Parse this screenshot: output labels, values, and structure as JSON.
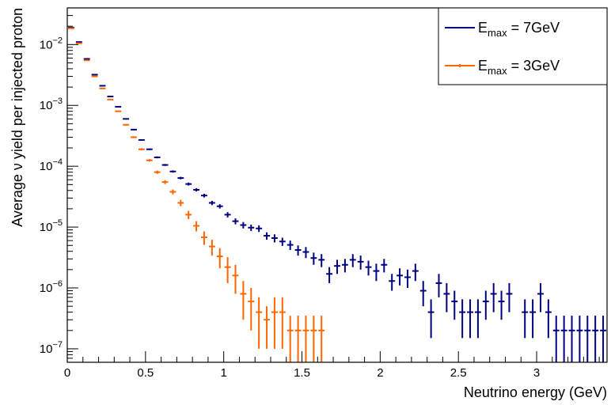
{
  "chart_data": {
    "type": "scatter",
    "title": "",
    "xlabel": "Neutrino energy (GeV)",
    "ylabel": "Average ν yield per injected proton",
    "xlim": [
      0,
      3.45
    ],
    "ylim": [
      6e-08,
      0.04
    ],
    "log_y": true,
    "grid": false,
    "legend_position": "top-right",
    "x_ticks": [
      {
        "value": 0,
        "label": "0"
      },
      {
        "value": 0.5,
        "label": "0.5"
      },
      {
        "value": 1,
        "label": "1"
      },
      {
        "value": 1.5,
        "label": "1.5"
      },
      {
        "value": 2,
        "label": "2"
      },
      {
        "value": 2.5,
        "label": "2.5"
      },
      {
        "value": 3,
        "label": "3"
      }
    ],
    "y_ticks": [
      {
        "exp": -7,
        "base": "10",
        "sup": "−7"
      },
      {
        "exp": -6,
        "base": "10",
        "sup": "−6"
      },
      {
        "exp": -5,
        "base": "10",
        "sup": "−5"
      },
      {
        "exp": -4,
        "base": "10",
        "sup": "−4"
      },
      {
        "exp": -3,
        "base": "10",
        "sup": "−3"
      },
      {
        "exp": -2,
        "base": "10",
        "sup": "−2"
      }
    ],
    "bin_width": 0.05,
    "series": [
      {
        "name": "E_max = 7GeV",
        "legend_main": "E",
        "legend_sub": "max",
        "legend_rest": " = 7GeV",
        "color": "#000080",
        "points": [
          [
            0.025,
            0.019,
            0.0003
          ],
          [
            0.075,
            0.011,
            0.0002
          ],
          [
            0.125,
            0.0058,
            0.0001
          ],
          [
            0.175,
            0.0032,
            6e-05
          ],
          [
            0.225,
            0.0021,
            4e-05
          ],
          [
            0.275,
            0.0014,
            3e-05
          ],
          [
            0.325,
            0.00095,
            2e-05
          ],
          [
            0.375,
            0.0006,
            1.5e-05
          ],
          [
            0.425,
            0.0004,
            1e-05
          ],
          [
            0.475,
            0.00027,
            8e-06
          ],
          [
            0.525,
            0.00019,
            6e-06
          ],
          [
            0.575,
            0.00014,
            5e-06
          ],
          [
            0.625,
            0.000105,
            4e-06
          ],
          [
            0.675,
            8.2e-05,
            3.5e-06
          ],
          [
            0.725,
            6.4e-05,
            3e-06
          ],
          [
            0.775,
            5.1e-05,
            2.8e-06
          ],
          [
            0.825,
            4.1e-05,
            2.5e-06
          ],
          [
            0.875,
            3.3e-05,
            2.3e-06
          ],
          [
            0.925,
            2.5e-05,
            2e-06
          ],
          [
            0.975,
            2.2e-05,
            1.8e-06
          ],
          [
            1.025,
            1.6e-05,
            1.6e-06
          ],
          [
            1.075,
            1.25e-05,
            1.4e-06
          ],
          [
            1.125,
            1.08e-05,
            1.3e-06
          ],
          [
            1.175,
            9.8e-06,
            1.2e-06
          ],
          [
            1.225,
            9.5e-06,
            1.2e-06
          ],
          [
            1.275,
            7.2e-06,
            1e-06
          ],
          [
            1.325,
            6.6e-06,
            1e-06
          ],
          [
            1.375,
            5.8e-06,
            9e-07
          ],
          [
            1.425,
            5.1e-06,
            9e-07
          ],
          [
            1.475,
            4.2e-06,
            8e-07
          ],
          [
            1.525,
            3.9e-06,
            8e-07
          ],
          [
            1.575,
            3.1e-06,
            7e-07
          ],
          [
            1.625,
            2.9e-06,
            7e-07
          ],
          [
            1.675,
            1.7e-06,
            5e-07
          ],
          [
            1.725,
            2.3e-06,
            6e-07
          ],
          [
            1.775,
            2.4e-06,
            6e-07
          ],
          [
            1.825,
            2.9e-06,
            7e-07
          ],
          [
            1.875,
            2.7e-06,
            7e-07
          ],
          [
            1.925,
            2.2e-06,
            6e-07
          ],
          [
            1.975,
            1.9e-06,
            6e-07
          ],
          [
            2.025,
            2.4e-06,
            6e-07
          ],
          [
            2.075,
            1.3e-06,
            4e-07
          ],
          [
            2.125,
            1.6e-06,
            5e-07
          ],
          [
            2.175,
            1.5e-06,
            5e-07
          ],
          [
            2.225,
            1.9e-06,
            6e-07
          ],
          [
            2.275,
            9e-07,
            4e-07
          ],
          [
            2.325,
            4e-07,
            2.5e-07
          ],
          [
            2.375,
            1.2e-06,
            5e-07
          ],
          [
            2.425,
            8e-07,
            4e-07
          ],
          [
            2.475,
            6e-07,
            3e-07
          ],
          [
            2.525,
            4e-07,
            2.5e-07
          ],
          [
            2.575,
            4e-07,
            2.5e-07
          ],
          [
            2.625,
            4e-07,
            2.5e-07
          ],
          [
            2.675,
            6e-07,
            3e-07
          ],
          [
            2.725,
            8e-07,
            4e-07
          ],
          [
            2.775,
            6e-07,
            3e-07
          ],
          [
            2.825,
            8e-07,
            4e-07
          ],
          [
            2.925,
            4e-07,
            2.5e-07
          ],
          [
            2.975,
            4e-07,
            2.5e-07
          ],
          [
            3.025,
            8e-07,
            4e-07
          ],
          [
            3.075,
            4e-07,
            2.5e-07
          ],
          [
            3.125,
            2e-07,
            1.5e-07
          ],
          [
            3.175,
            2e-07,
            1.5e-07
          ],
          [
            3.225,
            2e-07,
            1.5e-07
          ],
          [
            3.275,
            2e-07,
            1.5e-07
          ],
          [
            3.325,
            2e-07,
            1.5e-07
          ],
          [
            3.375,
            2e-07,
            1.5e-07
          ],
          [
            3.425,
            2e-07,
            1.5e-07
          ]
        ]
      },
      {
        "name": "E_max = 3GeV",
        "legend_main": "E",
        "legend_sub": "max",
        "legend_rest": " = 3GeV",
        "color": "#ff6600",
        "points": [
          [
            0.025,
            0.0185,
            0.0003
          ],
          [
            0.075,
            0.0105,
            0.0002
          ],
          [
            0.125,
            0.0055,
            0.0001
          ],
          [
            0.175,
            0.003,
            6e-05
          ],
          [
            0.225,
            0.0019,
            4e-05
          ],
          [
            0.275,
            0.00125,
            3e-05
          ],
          [
            0.325,
            0.0008,
            2e-05
          ],
          [
            0.375,
            0.00048,
            1.5e-05
          ],
          [
            0.425,
            0.0003,
            1e-05
          ],
          [
            0.475,
            0.00019,
            8e-06
          ],
          [
            0.525,
            0.000125,
            6e-06
          ],
          [
            0.575,
            8e-05,
            5e-06
          ],
          [
            0.625,
            5.5e-05,
            4e-06
          ],
          [
            0.675,
            3.8e-05,
            3.5e-06
          ],
          [
            0.725,
            2.5e-05,
            3e-06
          ],
          [
            0.775,
            1.6e-05,
            2.5e-06
          ],
          [
            0.825,
            1.05e-05,
            2e-06
          ],
          [
            0.875,
            6.8e-06,
            1.7e-06
          ],
          [
            0.925,
            4.8e-06,
            1.4e-06
          ],
          [
            0.975,
            3.3e-06,
            1.2e-06
          ],
          [
            1.025,
            2.2e-06,
            1e-06
          ],
          [
            1.075,
            1.6e-06,
            8e-07
          ],
          [
            1.125,
            8e-07,
            5e-07
          ],
          [
            1.175,
            6e-07,
            4e-07
          ],
          [
            1.225,
            4e-07,
            3e-07
          ],
          [
            1.275,
            3e-07,
            2e-07
          ],
          [
            1.325,
            4e-07,
            3e-07
          ],
          [
            1.375,
            4e-07,
            3e-07
          ],
          [
            1.425,
            2e-07,
            1.5e-07
          ],
          [
            1.475,
            2e-07,
            1.5e-07
          ],
          [
            1.525,
            2e-07,
            1.5e-07
          ],
          [
            1.575,
            2e-07,
            1.5e-07
          ],
          [
            1.625,
            2e-07,
            1.5e-07
          ]
        ]
      }
    ]
  }
}
